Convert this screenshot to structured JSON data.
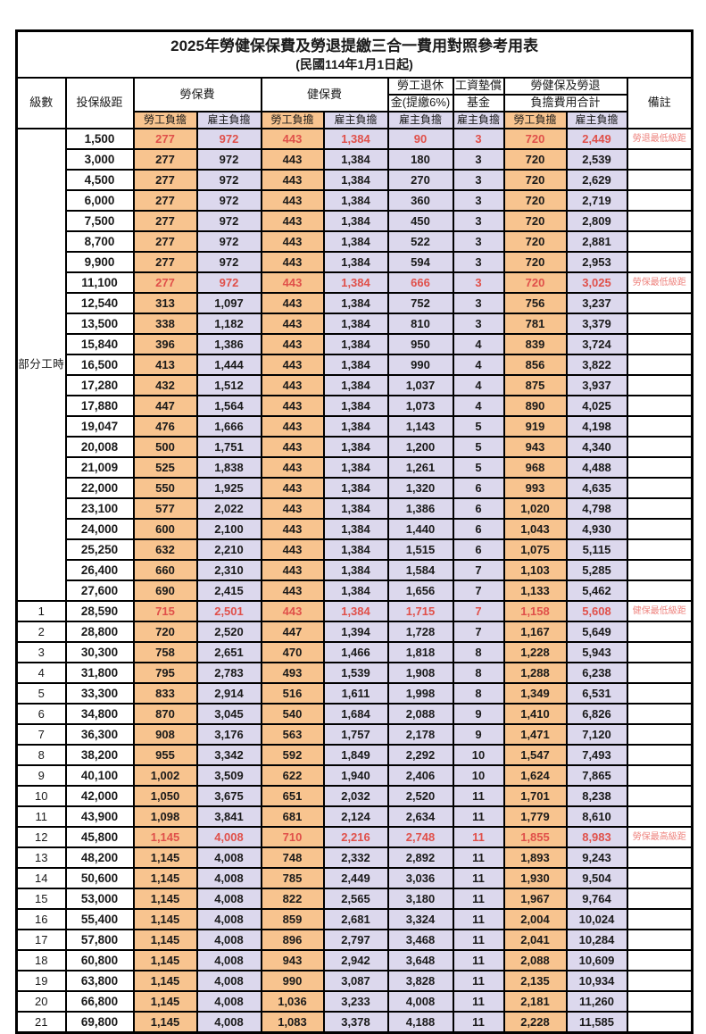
{
  "title": "2025年勞健保保費及勞退提繳三合一費用對照參考用表",
  "subtitle": "(民國114年1月1日起)",
  "header": {
    "level": "級數",
    "bracket": "投保級距",
    "labor_insurance": "勞保費",
    "health_insurance": "健保費",
    "pension_line1": "勞工退休",
    "pension_line2": "金(提繳6%)",
    "wage_fund_line1": "工資墊償",
    "wage_fund_line2": "基金",
    "total_line1": "勞健保及勞退",
    "total_line2": "負擔費用合計",
    "remark": "備註",
    "worker": "勞工負擔",
    "employer": "雇主負擔"
  },
  "part_time_label": "部分工時",
  "part_time_rows": 23,
  "colors": {
    "worker_bg": "#f8c48f",
    "employer_bg": "#dcd8ed",
    "red_value": "#e0504a",
    "red_remark": "#ee837e",
    "border": "#000000"
  },
  "rows": [
    {
      "level": "",
      "bracket": "1,500",
      "vals": [
        "277",
        "972",
        "443",
        "1,384",
        "90",
        "3",
        "720",
        "2,449"
      ],
      "remark": "勞退最低級距",
      "red": true
    },
    {
      "level": "",
      "bracket": "3,000",
      "vals": [
        "277",
        "972",
        "443",
        "1,384",
        "180",
        "3",
        "720",
        "2,539"
      ],
      "remark": "",
      "red": false
    },
    {
      "level": "",
      "bracket": "4,500",
      "vals": [
        "277",
        "972",
        "443",
        "1,384",
        "270",
        "3",
        "720",
        "2,629"
      ],
      "remark": "",
      "red": false
    },
    {
      "level": "",
      "bracket": "6,000",
      "vals": [
        "277",
        "972",
        "443",
        "1,384",
        "360",
        "3",
        "720",
        "2,719"
      ],
      "remark": "",
      "red": false
    },
    {
      "level": "",
      "bracket": "7,500",
      "vals": [
        "277",
        "972",
        "443",
        "1,384",
        "450",
        "3",
        "720",
        "2,809"
      ],
      "remark": "",
      "red": false
    },
    {
      "level": "",
      "bracket": "8,700",
      "vals": [
        "277",
        "972",
        "443",
        "1,384",
        "522",
        "3",
        "720",
        "2,881"
      ],
      "remark": "",
      "red": false
    },
    {
      "level": "",
      "bracket": "9,900",
      "vals": [
        "277",
        "972",
        "443",
        "1,384",
        "594",
        "3",
        "720",
        "2,953"
      ],
      "remark": "",
      "red": false
    },
    {
      "level": "",
      "bracket": "11,100",
      "vals": [
        "277",
        "972",
        "443",
        "1,384",
        "666",
        "3",
        "720",
        "3,025"
      ],
      "remark": "勞保最低級距",
      "red": true
    },
    {
      "level": "",
      "bracket": "12,540",
      "vals": [
        "313",
        "1,097",
        "443",
        "1,384",
        "752",
        "3",
        "756",
        "3,237"
      ],
      "remark": "",
      "red": false
    },
    {
      "level": "",
      "bracket": "13,500",
      "vals": [
        "338",
        "1,182",
        "443",
        "1,384",
        "810",
        "3",
        "781",
        "3,379"
      ],
      "remark": "",
      "red": false
    },
    {
      "level": "",
      "bracket": "15,840",
      "vals": [
        "396",
        "1,386",
        "443",
        "1,384",
        "950",
        "4",
        "839",
        "3,724"
      ],
      "remark": "",
      "red": false
    },
    {
      "level": "",
      "bracket": "16,500",
      "vals": [
        "413",
        "1,444",
        "443",
        "1,384",
        "990",
        "4",
        "856",
        "3,822"
      ],
      "remark": "",
      "red": false
    },
    {
      "level": "",
      "bracket": "17,280",
      "vals": [
        "432",
        "1,512",
        "443",
        "1,384",
        "1,037",
        "4",
        "875",
        "3,937"
      ],
      "remark": "",
      "red": false
    },
    {
      "level": "",
      "bracket": "17,880",
      "vals": [
        "447",
        "1,564",
        "443",
        "1,384",
        "1,073",
        "4",
        "890",
        "4,025"
      ],
      "remark": "",
      "red": false
    },
    {
      "level": "",
      "bracket": "19,047",
      "vals": [
        "476",
        "1,666",
        "443",
        "1,384",
        "1,143",
        "5",
        "919",
        "4,198"
      ],
      "remark": "",
      "red": false
    },
    {
      "level": "",
      "bracket": "20,008",
      "vals": [
        "500",
        "1,751",
        "443",
        "1,384",
        "1,200",
        "5",
        "943",
        "4,340"
      ],
      "remark": "",
      "red": false
    },
    {
      "level": "",
      "bracket": "21,009",
      "vals": [
        "525",
        "1,838",
        "443",
        "1,384",
        "1,261",
        "5",
        "968",
        "4,488"
      ],
      "remark": "",
      "red": false
    },
    {
      "level": "",
      "bracket": "22,000",
      "vals": [
        "550",
        "1,925",
        "443",
        "1,384",
        "1,320",
        "6",
        "993",
        "4,635"
      ],
      "remark": "",
      "red": false
    },
    {
      "level": "",
      "bracket": "23,100",
      "vals": [
        "577",
        "2,022",
        "443",
        "1,384",
        "1,386",
        "6",
        "1,020",
        "4,798"
      ],
      "remark": "",
      "red": false
    },
    {
      "level": "",
      "bracket": "24,000",
      "vals": [
        "600",
        "2,100",
        "443",
        "1,384",
        "1,440",
        "6",
        "1,043",
        "4,930"
      ],
      "remark": "",
      "red": false
    },
    {
      "level": "",
      "bracket": "25,250",
      "vals": [
        "632",
        "2,210",
        "443",
        "1,384",
        "1,515",
        "6",
        "1,075",
        "5,115"
      ],
      "remark": "",
      "red": false
    },
    {
      "level": "",
      "bracket": "26,400",
      "vals": [
        "660",
        "2,310",
        "443",
        "1,384",
        "1,584",
        "7",
        "1,103",
        "5,285"
      ],
      "remark": "",
      "red": false
    },
    {
      "level": "",
      "bracket": "27,600",
      "vals": [
        "690",
        "2,415",
        "443",
        "1,384",
        "1,656",
        "7",
        "1,133",
        "5,462"
      ],
      "remark": "",
      "red": false
    },
    {
      "level": "1",
      "bracket": "28,590",
      "vals": [
        "715",
        "2,501",
        "443",
        "1,384",
        "1,715",
        "7",
        "1,158",
        "5,608"
      ],
      "remark": "健保最低級距",
      "red": true
    },
    {
      "level": "2",
      "bracket": "28,800",
      "vals": [
        "720",
        "2,520",
        "447",
        "1,394",
        "1,728",
        "7",
        "1,167",
        "5,649"
      ],
      "remark": "",
      "red": false
    },
    {
      "level": "3",
      "bracket": "30,300",
      "vals": [
        "758",
        "2,651",
        "470",
        "1,466",
        "1,818",
        "8",
        "1,228",
        "5,943"
      ],
      "remark": "",
      "red": false
    },
    {
      "level": "4",
      "bracket": "31,800",
      "vals": [
        "795",
        "2,783",
        "493",
        "1,539",
        "1,908",
        "8",
        "1,288",
        "6,238"
      ],
      "remark": "",
      "red": false
    },
    {
      "level": "5",
      "bracket": "33,300",
      "vals": [
        "833",
        "2,914",
        "516",
        "1,611",
        "1,998",
        "8",
        "1,349",
        "6,531"
      ],
      "remark": "",
      "red": false
    },
    {
      "level": "6",
      "bracket": "34,800",
      "vals": [
        "870",
        "3,045",
        "540",
        "1,684",
        "2,088",
        "9",
        "1,410",
        "6,826"
      ],
      "remark": "",
      "red": false
    },
    {
      "level": "7",
      "bracket": "36,300",
      "vals": [
        "908",
        "3,176",
        "563",
        "1,757",
        "2,178",
        "9",
        "1,471",
        "7,120"
      ],
      "remark": "",
      "red": false
    },
    {
      "level": "8",
      "bracket": "38,200",
      "vals": [
        "955",
        "3,342",
        "592",
        "1,849",
        "2,292",
        "10",
        "1,547",
        "7,493"
      ],
      "remark": "",
      "red": false
    },
    {
      "level": "9",
      "bracket": "40,100",
      "vals": [
        "1,002",
        "3,509",
        "622",
        "1,940",
        "2,406",
        "10",
        "1,624",
        "7,865"
      ],
      "remark": "",
      "red": false
    },
    {
      "level": "10",
      "bracket": "42,000",
      "vals": [
        "1,050",
        "3,675",
        "651",
        "2,032",
        "2,520",
        "11",
        "1,701",
        "8,238"
      ],
      "remark": "",
      "red": false
    },
    {
      "level": "11",
      "bracket": "43,900",
      "vals": [
        "1,098",
        "3,841",
        "681",
        "2,124",
        "2,634",
        "11",
        "1,779",
        "8,610"
      ],
      "remark": "",
      "red": false
    },
    {
      "level": "12",
      "bracket": "45,800",
      "vals": [
        "1,145",
        "4,008",
        "710",
        "2,216",
        "2,748",
        "11",
        "1,855",
        "8,983"
      ],
      "remark": "勞保最高級距",
      "red": true
    },
    {
      "level": "13",
      "bracket": "48,200",
      "vals": [
        "1,145",
        "4,008",
        "748",
        "2,332",
        "2,892",
        "11",
        "1,893",
        "9,243"
      ],
      "remark": "",
      "red": false
    },
    {
      "level": "14",
      "bracket": "50,600",
      "vals": [
        "1,145",
        "4,008",
        "785",
        "2,449",
        "3,036",
        "11",
        "1,930",
        "9,504"
      ],
      "remark": "",
      "red": false
    },
    {
      "level": "15",
      "bracket": "53,000",
      "vals": [
        "1,145",
        "4,008",
        "822",
        "2,565",
        "3,180",
        "11",
        "1,967",
        "9,764"
      ],
      "remark": "",
      "red": false
    },
    {
      "level": "16",
      "bracket": "55,400",
      "vals": [
        "1,145",
        "4,008",
        "859",
        "2,681",
        "3,324",
        "11",
        "2,004",
        "10,024"
      ],
      "remark": "",
      "red": false
    },
    {
      "level": "17",
      "bracket": "57,800",
      "vals": [
        "1,145",
        "4,008",
        "896",
        "2,797",
        "3,468",
        "11",
        "2,041",
        "10,284"
      ],
      "remark": "",
      "red": false
    },
    {
      "level": "18",
      "bracket": "60,800",
      "vals": [
        "1,145",
        "4,008",
        "943",
        "2,942",
        "3,648",
        "11",
        "2,088",
        "10,609"
      ],
      "remark": "",
      "red": false
    },
    {
      "level": "19",
      "bracket": "63,800",
      "vals": [
        "1,145",
        "4,008",
        "990",
        "3,087",
        "3,828",
        "11",
        "2,135",
        "10,934"
      ],
      "remark": "",
      "red": false
    },
    {
      "level": "20",
      "bracket": "66,800",
      "vals": [
        "1,145",
        "4,008",
        "1,036",
        "3,233",
        "4,008",
        "11",
        "2,181",
        "11,260"
      ],
      "remark": "",
      "red": false
    },
    {
      "level": "21",
      "bracket": "69,800",
      "vals": [
        "1,145",
        "4,008",
        "1,083",
        "3,378",
        "4,188",
        "11",
        "2,228",
        "11,585"
      ],
      "remark": "",
      "red": false
    }
  ]
}
